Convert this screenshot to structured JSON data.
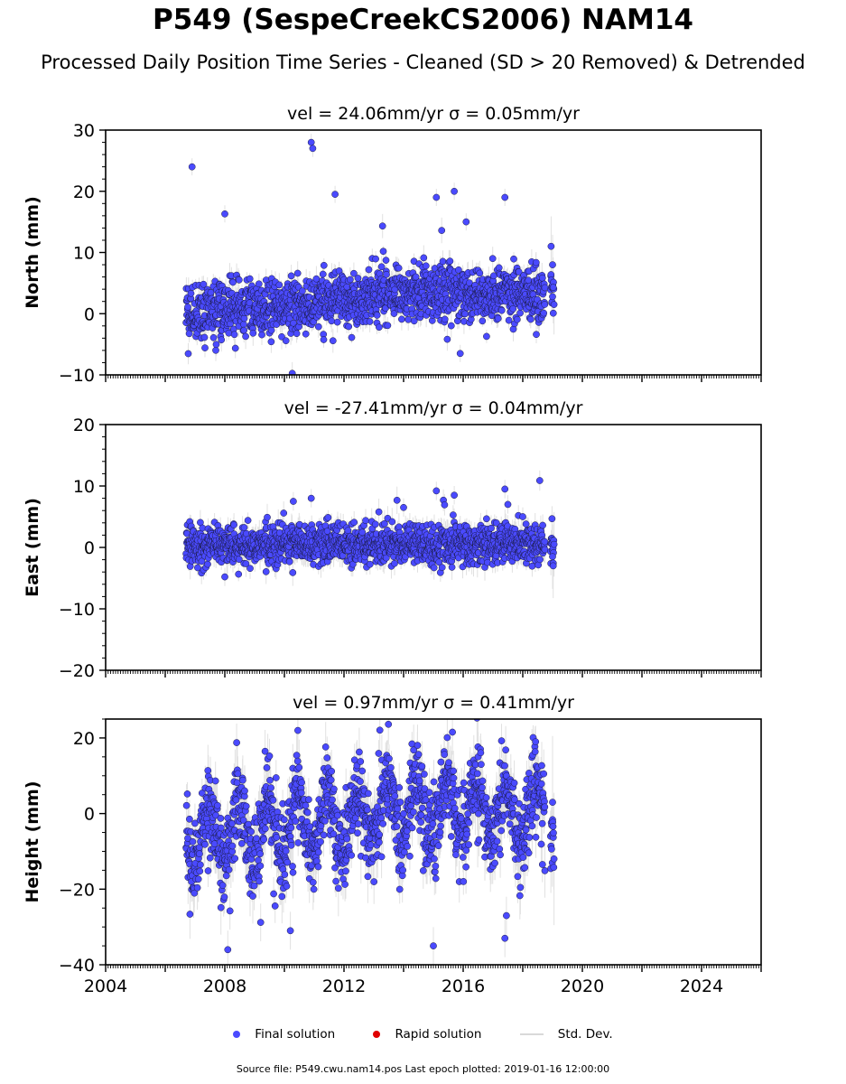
{
  "title": "P549 (SespeCreekCS2006) NAM14",
  "subtitle": "Processed Daily Position Time Series - Cleaned (SD > 20 Removed) & Detrended",
  "legend": {
    "final": "Final solution",
    "rapid": "Rapid solution",
    "std": "Std. Dev."
  },
  "footer": "Source file: P549.cwu.nam14.pos  Last epoch plotted: 2019-01-16 12:00:00",
  "colors": {
    "final": "#4a4aff",
    "final_edge": "#1a1a40",
    "rapid": "#e00000",
    "std": "#c8c8c8"
  },
  "chart_data": [
    {
      "type": "scatter",
      "panel_title": "vel = 24.06mm/yr   σ = 0.05mm/yr",
      "ylabel": "North (mm)",
      "xlim": [
        2004,
        2026
      ],
      "ylim": [
        -10,
        30
      ],
      "yticks": [
        -10,
        0,
        10,
        20,
        30
      ],
      "ytick_labels": [
        "−10",
        "0",
        "10",
        "20",
        "30"
      ],
      "x_range": [
        2006.7,
        2019.04
      ],
      "trend": {
        "x": [
          2006.7,
          2010.5,
          2013.0,
          2016.0,
          2018.5
        ],
        "y": [
          0.0,
          1.5,
          3.0,
          3.3,
          3.5
        ]
      },
      "scatter_sd": 2.2,
      "err_sd": 1.4,
      "highlights": {
        "x": [
          2006.9,
          2010.9,
          2010.95,
          2015.7,
          2008.0,
          2011.7,
          2015.1,
          2016.1,
          2017.4,
          2018.95,
          2019.0,
          2019.02,
          2019.05,
          2015.9
        ],
        "y": [
          24,
          28,
          27,
          20,
          16.3,
          19.5,
          19,
          15,
          19,
          11,
          8,
          4.3,
          1.5,
          -6.5
        ]
      }
    },
    {
      "type": "scatter",
      "panel_title": "vel = -27.41mm/yr   σ = 0.04mm/yr",
      "ylabel": "East (mm)",
      "xlim": [
        2004,
        2026
      ],
      "ylim": [
        -20,
        20
      ],
      "yticks": [
        -20,
        -10,
        0,
        10,
        20
      ],
      "ytick_labels": [
        "−20",
        "−10",
        "0",
        "10",
        "20"
      ],
      "x_range": [
        2006.7,
        2019.04
      ],
      "trend": {
        "x": [
          2006.7,
          2019.04
        ],
        "y": [
          0.5,
          0.5
        ]
      },
      "scatter_sd": 1.6,
      "err_sd": 1.5,
      "highlights": {
        "x": [
          2010.3,
          2010.9,
          2014.0,
          2015.1,
          2015.7,
          2017.4,
          2017.5,
          2018.0,
          2019.0,
          2019.02,
          2019.05,
          2008.0
        ],
        "y": [
          7.5,
          8,
          6.5,
          9.2,
          8.5,
          9.5,
          7,
          5,
          -1.5,
          -3,
          0.5,
          -4.8
        ]
      }
    },
    {
      "type": "scatter",
      "panel_title": "vel = 0.97mm/yr   σ = 0.41mm/yr",
      "ylabel": "Height (mm)",
      "xlim": [
        2004,
        2026
      ],
      "ylim": [
        -40,
        25
      ],
      "yticks": [
        -40,
        -20,
        0,
        20
      ],
      "ytick_labels": [
        "−40",
        "−20",
        "0",
        "20"
      ],
      "xticks": [
        2004,
        2008,
        2012,
        2016,
        2020,
        2024
      ],
      "xtick_labels": [
        "2004",
        "2008",
        "2012",
        "2016",
        "2020",
        "2024"
      ],
      "x_range": [
        2006.7,
        2019.04
      ],
      "trend": {
        "x": [
          2006.7,
          2009.0,
          2012.0,
          2015.5,
          2018.5
        ],
        "y": [
          -6,
          -5,
          -2,
          2,
          0
        ]
      },
      "seasonal_amp": 8,
      "scatter_sd": 5.5,
      "err_sd": 5,
      "highlights": {
        "x": [
          2010.45,
          2015.0,
          2008.1,
          2010.2,
          2017.4,
          2017.45,
          2019.0,
          2019.05
        ],
        "y": [
          22,
          -35,
          -36,
          -31,
          -33,
          -27,
          3,
          -12
        ]
      }
    }
  ]
}
